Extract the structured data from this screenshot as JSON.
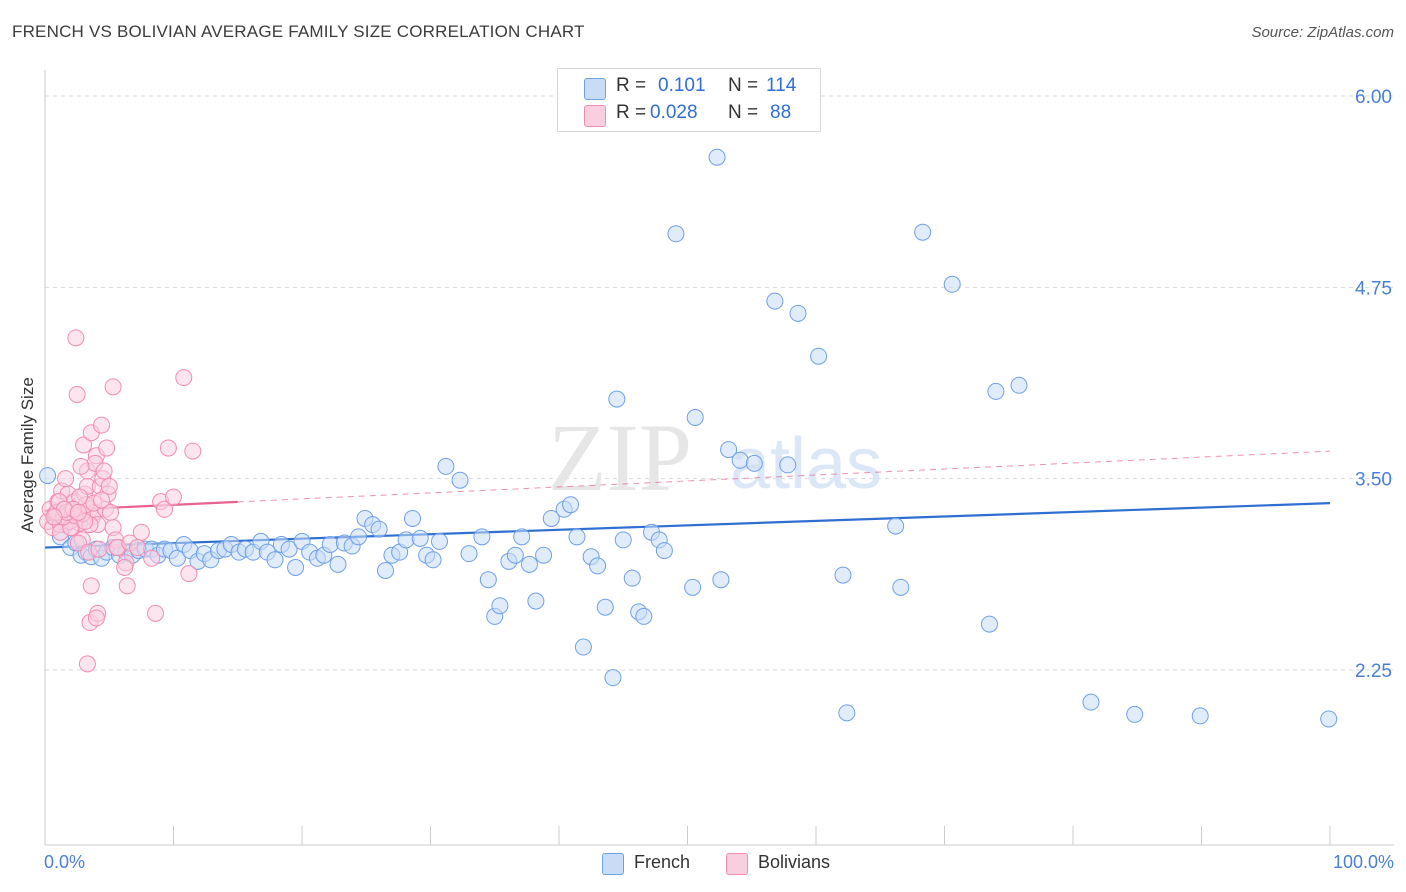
{
  "title": "FRENCH VS BOLIVIAN AVERAGE FAMILY SIZE CORRELATION CHART",
  "source": "Source: ZipAtlas.com",
  "watermark": {
    "zip": "ZIP",
    "atlas": "atlas"
  },
  "colors": {
    "french": "#6fa0e8",
    "french_fill": "#c9dcf6",
    "french_line": "#2f6fd1",
    "bolivians": "#f28db0",
    "bolivians_fill": "#f9cfe0",
    "bolivians_line": "#e8638f",
    "grid": "#d9d9d9",
    "axis": "#cccccc",
    "tick_text": "#4a7fd6"
  },
  "stats": {
    "french": {
      "r_label": "R =",
      "r_value": "0.101",
      "n_label": "N =",
      "n_value": "114"
    },
    "bolivians": {
      "r_label": "R =",
      "r_value": "0.028",
      "n_label": "N =",
      "n_value": "88"
    }
  },
  "chart_data": {
    "type": "scatter",
    "title": "FRENCH VS BOLIVIAN AVERAGE FAMILY SIZE CORRELATION CHART",
    "xlabel": "",
    "ylabel": "Average Family Size",
    "xlim": [
      0,
      100
    ],
    "ylim": [
      1.25,
      6.1
    ],
    "x_tick_labels": [
      "0.0%",
      "100.0%"
    ],
    "y_ticks": [
      2.25,
      3.5,
      4.75,
      6.0
    ],
    "y_tick_labels": [
      "2.25",
      "3.50",
      "4.75",
      "6.00"
    ],
    "x_minor_ticks": [
      10,
      20,
      30,
      40,
      50,
      60,
      70,
      80,
      90,
      100
    ],
    "grid": true,
    "legend": [
      "French",
      "Bolivians"
    ],
    "series": [
      {
        "name": "French",
        "r": 0.101,
        "n": 114,
        "trend": {
          "x0": 0,
          "y0": 3.05,
          "x1": 100,
          "y1": 3.34,
          "solid_to": 100
        },
        "points": [
          [
            0.2,
            3.52
          ],
          [
            0.8,
            3.25
          ],
          [
            1.2,
            3.12
          ],
          [
            1.6,
            3.2
          ],
          [
            2.0,
            3.05
          ],
          [
            2.4,
            3.08
          ],
          [
            2.8,
            3.0
          ],
          [
            3.2,
            3.02
          ],
          [
            3.6,
            2.99
          ],
          [
            4.0,
            3.04
          ],
          [
            4.4,
            2.98
          ],
          [
            4.8,
            3.02
          ],
          [
            5.3,
            3.05
          ],
          [
            5.8,
            3.0
          ],
          [
            6.3,
            3.02
          ],
          [
            6.8,
            3.0
          ],
          [
            7.3,
            3.03
          ],
          [
            7.8,
            3.04
          ],
          [
            8.3,
            3.04
          ],
          [
            8.8,
            3.0
          ],
          [
            9.3,
            3.04
          ],
          [
            9.8,
            3.03
          ],
          [
            10.3,
            2.98
          ],
          [
            10.8,
            3.07
          ],
          [
            11.3,
            3.03
          ],
          [
            11.9,
            2.96
          ],
          [
            12.4,
            3.01
          ],
          [
            12.9,
            2.97
          ],
          [
            13.5,
            3.03
          ],
          [
            14.0,
            3.04
          ],
          [
            14.5,
            3.07
          ],
          [
            15.1,
            3.02
          ],
          [
            15.6,
            3.04
          ],
          [
            16.2,
            3.02
          ],
          [
            16.8,
            3.09
          ],
          [
            17.3,
            3.02
          ],
          [
            17.9,
            2.97
          ],
          [
            18.4,
            3.07
          ],
          [
            19.0,
            3.04
          ],
          [
            19.5,
            2.92
          ],
          [
            20.0,
            3.09
          ],
          [
            20.6,
            3.02
          ],
          [
            21.2,
            2.98
          ],
          [
            21.7,
            3.0
          ],
          [
            22.2,
            3.07
          ],
          [
            22.8,
            2.94
          ],
          [
            23.3,
            3.08
          ],
          [
            23.9,
            3.06
          ],
          [
            24.4,
            3.12
          ],
          [
            24.9,
            3.24
          ],
          [
            25.5,
            3.2
          ],
          [
            26.0,
            3.17
          ],
          [
            26.5,
            2.9
          ],
          [
            27.0,
            3.0
          ],
          [
            27.6,
            3.02
          ],
          [
            28.1,
            3.1
          ],
          [
            28.6,
            3.24
          ],
          [
            29.2,
            3.11
          ],
          [
            29.7,
            3.0
          ],
          [
            30.2,
            2.97
          ],
          [
            30.7,
            3.09
          ],
          [
            31.2,
            3.58
          ],
          [
            32.3,
            3.49
          ],
          [
            33.0,
            3.01
          ],
          [
            34.0,
            3.12
          ],
          [
            34.5,
            2.84
          ],
          [
            35.0,
            2.6
          ],
          [
            35.4,
            2.67
          ],
          [
            36.1,
            2.96
          ],
          [
            36.6,
            3.0
          ],
          [
            37.1,
            3.12
          ],
          [
            37.7,
            2.94
          ],
          [
            38.2,
            2.7
          ],
          [
            38.8,
            3.0
          ],
          [
            39.4,
            3.24
          ],
          [
            40.4,
            3.3
          ],
          [
            40.9,
            3.33
          ],
          [
            41.4,
            3.12
          ],
          [
            41.9,
            2.4
          ],
          [
            42.5,
            2.99
          ],
          [
            43.0,
            2.93
          ],
          [
            43.6,
            2.66
          ],
          [
            44.2,
            2.2
          ],
          [
            44.5,
            4.02
          ],
          [
            45.0,
            3.1
          ],
          [
            45.7,
            2.85
          ],
          [
            46.2,
            2.63
          ],
          [
            46.6,
            2.6
          ],
          [
            47.2,
            3.15
          ],
          [
            47.8,
            3.1
          ],
          [
            48.2,
            3.03
          ],
          [
            49.1,
            5.1
          ],
          [
            50.4,
            2.79
          ],
          [
            50.6,
            3.9
          ],
          [
            52.3,
            5.6
          ],
          [
            52.6,
            2.84
          ],
          [
            53.2,
            3.69
          ],
          [
            54.1,
            3.62
          ],
          [
            55.2,
            3.6
          ],
          [
            56.8,
            4.66
          ],
          [
            57.8,
            3.59
          ],
          [
            58.6,
            4.58
          ],
          [
            60.2,
            4.3
          ],
          [
            62.1,
            2.87
          ],
          [
            62.4,
            1.97
          ],
          [
            66.2,
            3.19
          ],
          [
            66.6,
            2.79
          ],
          [
            68.3,
            5.11
          ],
          [
            70.6,
            4.77
          ],
          [
            73.5,
            2.55
          ],
          [
            74.0,
            4.07
          ],
          [
            75.8,
            4.11
          ],
          [
            81.4,
            2.04
          ],
          [
            84.8,
            1.96
          ],
          [
            89.9,
            1.95
          ],
          [
            99.9,
            1.93
          ]
        ]
      },
      {
        "name": "Bolivians",
        "r": 0.028,
        "n": 88,
        "trend": {
          "x0": 0,
          "y0": 3.29,
          "x1": 100,
          "y1": 3.68,
          "solid_to": 15
        },
        "points": [
          [
            0.2,
            3.22
          ],
          [
            0.4,
            3.3
          ],
          [
            0.6,
            3.18
          ],
          [
            0.8,
            3.27
          ],
          [
            1.0,
            3.35
          ],
          [
            1.2,
            3.2
          ],
          [
            1.3,
            3.42
          ],
          [
            1.5,
            3.25
          ],
          [
            1.6,
            3.3
          ],
          [
            1.8,
            3.4
          ],
          [
            2.0,
            3.28
          ],
          [
            2.1,
            3.18
          ],
          [
            2.3,
            3.35
          ],
          [
            2.5,
            3.24
          ],
          [
            2.7,
            3.21
          ],
          [
            2.9,
            3.1
          ],
          [
            3.1,
            3.4
          ],
          [
            3.3,
            3.45
          ],
          [
            3.5,
            3.3
          ],
          [
            3.7,
            3.25
          ],
          [
            3.9,
            3.28
          ],
          [
            4.1,
            3.2
          ],
          [
            4.3,
            3.45
          ],
          [
            4.5,
            3.5
          ],
          [
            4.7,
            3.3
          ],
          [
            4.9,
            3.4
          ],
          [
            5.1,
            3.28
          ],
          [
            5.3,
            3.18
          ],
          [
            5.5,
            3.1
          ],
          [
            5.7,
            3.05
          ],
          [
            1.2,
            3.15
          ],
          [
            1.9,
            3.22
          ],
          [
            2.6,
            3.08
          ],
          [
            3.4,
            3.02
          ],
          [
            4.2,
            3.04
          ],
          [
            2.2,
            3.3
          ],
          [
            2.4,
            4.42
          ],
          [
            2.5,
            4.05
          ],
          [
            3.0,
            3.72
          ],
          [
            3.6,
            3.8
          ],
          [
            4.0,
            3.65
          ],
          [
            4.4,
            3.85
          ],
          [
            4.8,
            3.7
          ],
          [
            5.3,
            4.1
          ],
          [
            5.0,
            3.45
          ],
          [
            3.3,
            3.55
          ],
          [
            3.9,
            3.6
          ],
          [
            4.6,
            3.55
          ],
          [
            1.6,
            3.5
          ],
          [
            2.8,
            3.58
          ],
          [
            5.6,
            3.05
          ],
          [
            6.3,
            2.95
          ],
          [
            6.6,
            3.08
          ],
          [
            7.2,
            3.05
          ],
          [
            7.5,
            3.15
          ],
          [
            8.3,
            2.98
          ],
          [
            8.6,
            2.62
          ],
          [
            9.0,
            3.35
          ],
          [
            9.3,
            3.3
          ],
          [
            9.6,
            3.7
          ],
          [
            10.0,
            3.38
          ],
          [
            10.8,
            4.16
          ],
          [
            11.2,
            2.88
          ],
          [
            11.5,
            3.68
          ],
          [
            3.6,
            2.8
          ],
          [
            3.5,
            2.56
          ],
          [
            4.1,
            2.62
          ],
          [
            4.0,
            2.59
          ],
          [
            3.3,
            2.29
          ],
          [
            6.4,
            2.8
          ],
          [
            6.2,
            2.92
          ],
          [
            3.5,
            3.2
          ],
          [
            2.0,
            3.18
          ],
          [
            2.9,
            3.27
          ],
          [
            3.2,
            3.33
          ],
          [
            1.4,
            3.25
          ],
          [
            0.9,
            3.28
          ],
          [
            1.1,
            3.35
          ],
          [
            2.7,
            3.38
          ],
          [
            3.8,
            3.34
          ],
          [
            4.4,
            3.36
          ],
          [
            2.3,
            3.26
          ],
          [
            1.7,
            3.28
          ],
          [
            3.1,
            3.22
          ],
          [
            2.2,
            3.3
          ],
          [
            1.5,
            3.3
          ],
          [
            2.6,
            3.28
          ],
          [
            0.7,
            3.25
          ]
        ]
      }
    ]
  },
  "legend": {
    "french": "French",
    "bolivians": "Bolivians"
  },
  "axis": {
    "x_left": "0.0%",
    "x_right": "100.0%",
    "ylabel": "Average Family Size"
  }
}
